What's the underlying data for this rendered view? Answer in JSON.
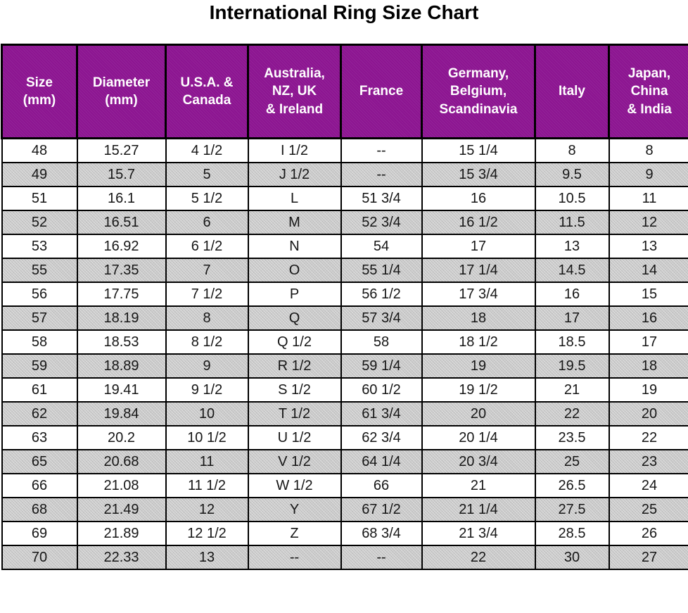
{
  "title": "International Ring Size Chart",
  "colors": {
    "header_bg": "#8C1591",
    "header_text": "#ffffff",
    "stripe_bg": "#c9c9c9",
    "border": "#000000",
    "body_text": "#161616",
    "title_text": "#000000"
  },
  "chart_data": {
    "type": "table",
    "title": "International Ring Size Chart",
    "columns": [
      "Size\n(mm)",
      "Diameter\n(mm)",
      "U.S.A. &\nCanada",
      "Australia,\nNZ, UK\n& Ireland",
      "France",
      "Germany,\nBelgium,\nScandinavia",
      "Italy",
      "Japan,\nChina\n& India"
    ],
    "rows": [
      [
        "48",
        "15.27",
        "4 1/2",
        "I 1/2",
        "--",
        "15 1/4",
        "8",
        "8"
      ],
      [
        "49",
        "15.7",
        "5",
        "J 1/2",
        "--",
        "15 3/4",
        "9.5",
        "9"
      ],
      [
        "51",
        "16.1",
        "5 1/2",
        "L",
        "51 3/4",
        "16",
        "10.5",
        "11"
      ],
      [
        "52",
        "16.51",
        "6",
        "M",
        "52 3/4",
        "16 1/2",
        "11.5",
        "12"
      ],
      [
        "53",
        "16.92",
        "6 1/2",
        "N",
        "54",
        "17",
        "13",
        "13"
      ],
      [
        "55",
        "17.35",
        "7",
        "O",
        "55 1/4",
        "17 1/4",
        "14.5",
        "14"
      ],
      [
        "56",
        "17.75",
        "7 1/2",
        "P",
        "56 1/2",
        "17 3/4",
        "16",
        "15"
      ],
      [
        "57",
        "18.19",
        "8",
        "Q",
        "57 3/4",
        "18",
        "17",
        "16"
      ],
      [
        "58",
        "18.53",
        "8 1/2",
        "Q 1/2",
        "58",
        "18 1/2",
        "18.5",
        "17"
      ],
      [
        "59",
        "18.89",
        "9",
        "R 1/2",
        "59 1/4",
        "19",
        "19.5",
        "18"
      ],
      [
        "61",
        "19.41",
        "9 1/2",
        "S 1/2",
        "60 1/2",
        "19 1/2",
        "21",
        "19"
      ],
      [
        "62",
        "19.84",
        "10",
        "T 1/2",
        "61 3/4",
        "20",
        "22",
        "20"
      ],
      [
        "63",
        "20.2",
        "10 1/2",
        "U 1/2",
        "62 3/4",
        "20 1/4",
        "23.5",
        "22"
      ],
      [
        "65",
        "20.68",
        "11",
        "V 1/2",
        "64 1/4",
        "20 3/4",
        "25",
        "23"
      ],
      [
        "66",
        "21.08",
        "11 1/2",
        "W 1/2",
        "66",
        "21",
        "26.5",
        "24"
      ],
      [
        "68",
        "21.49",
        "12",
        "Y",
        "67 1/2",
        "21 1/4",
        "27.5",
        "25"
      ],
      [
        "69",
        "21.89",
        "12 1/2",
        "Z",
        "68 3/4",
        "21 3/4",
        "28.5",
        "26"
      ],
      [
        "70",
        "22.33",
        "13",
        "--",
        "--",
        "22",
        "30",
        "27"
      ]
    ]
  }
}
